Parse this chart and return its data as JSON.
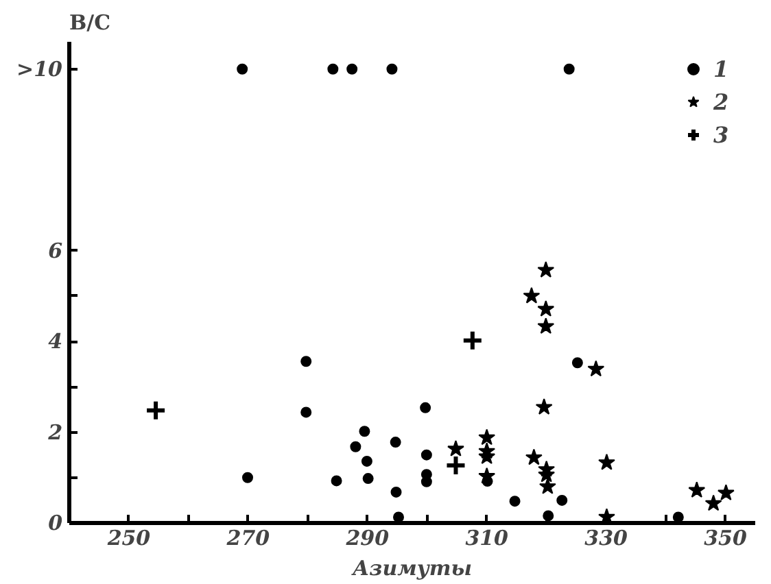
{
  "chart_data": {
    "type": "scatter",
    "xlabel": "Азимуты",
    "ylabel": "B/C",
    "xlim": [
      240,
      355
    ],
    "ylim": [
      0,
      10.6
    ],
    "xticks": [
      250,
      {
        "value": 260,
        "label": null
      },
      270,
      {
        "value": 280,
        "label": null
      },
      290,
      {
        "value": 300,
        "label": null
      },
      310,
      {
        "value": 320,
        "label": null
      },
      330,
      {
        "value": 340,
        "label": null
      },
      350
    ],
    "yticks": [
      0,
      {
        "value": 1,
        "label": null
      },
      2,
      {
        "value": 3,
        "label": null
      },
      4,
      {
        "value": 5,
        "label": null
      },
      6,
      {
        "value": 10,
        "label": ">10"
      }
    ],
    "grid": false,
    "legend": "top right",
    "series": [
      {
        "name": "1",
        "color": "#000000",
        "marker": "circle",
        "x": [
          269,
          284.2,
          287.4,
          294.1,
          323.8,
          279.7,
          279.7,
          269.9,
          284.8,
          289.5,
          288,
          289.9,
          290.1,
          294.7,
          294.8,
          295.2,
          299.7,
          299.9,
          299.9,
          299.9,
          310.1,
          314.7,
          320.3,
          322.6,
          325.2,
          342.1
        ],
        "values": [
          10,
          10,
          10,
          10,
          10,
          3.56,
          2.44,
          1.0,
          0.93,
          2.02,
          1.68,
          1.36,
          0.98,
          1.78,
          0.68,
          0.13,
          2.54,
          1.5,
          1.07,
          0.91,
          0.92,
          0.48,
          0.16,
          0.5,
          3.53,
          0.13
        ]
      },
      {
        "name": "2",
        "color": "#000000",
        "marker": "star",
        "x": [
          319.9,
          317.5,
          319.9,
          319.9,
          328.3,
          319.6,
          304.8,
          310,
          310,
          310,
          310,
          317.9,
          320,
          320,
          320.2,
          330.1,
          330.1,
          345.2,
          348,
          350.1
        ],
        "values": [
          5.57,
          5.0,
          4.71,
          4.33,
          3.39,
          2.55,
          1.63,
          1.88,
          1.58,
          1.46,
          1.03,
          1.44,
          1.18,
          1.06,
          0.8,
          1.33,
          0.13,
          0.72,
          0.43,
          0.66
        ]
      },
      {
        "name": "3",
        "color": "#000000",
        "marker": "cross",
        "x": [
          254.5,
          304.8,
          307.6
        ],
        "values": [
          2.48,
          1.27,
          4.02
        ]
      }
    ]
  }
}
